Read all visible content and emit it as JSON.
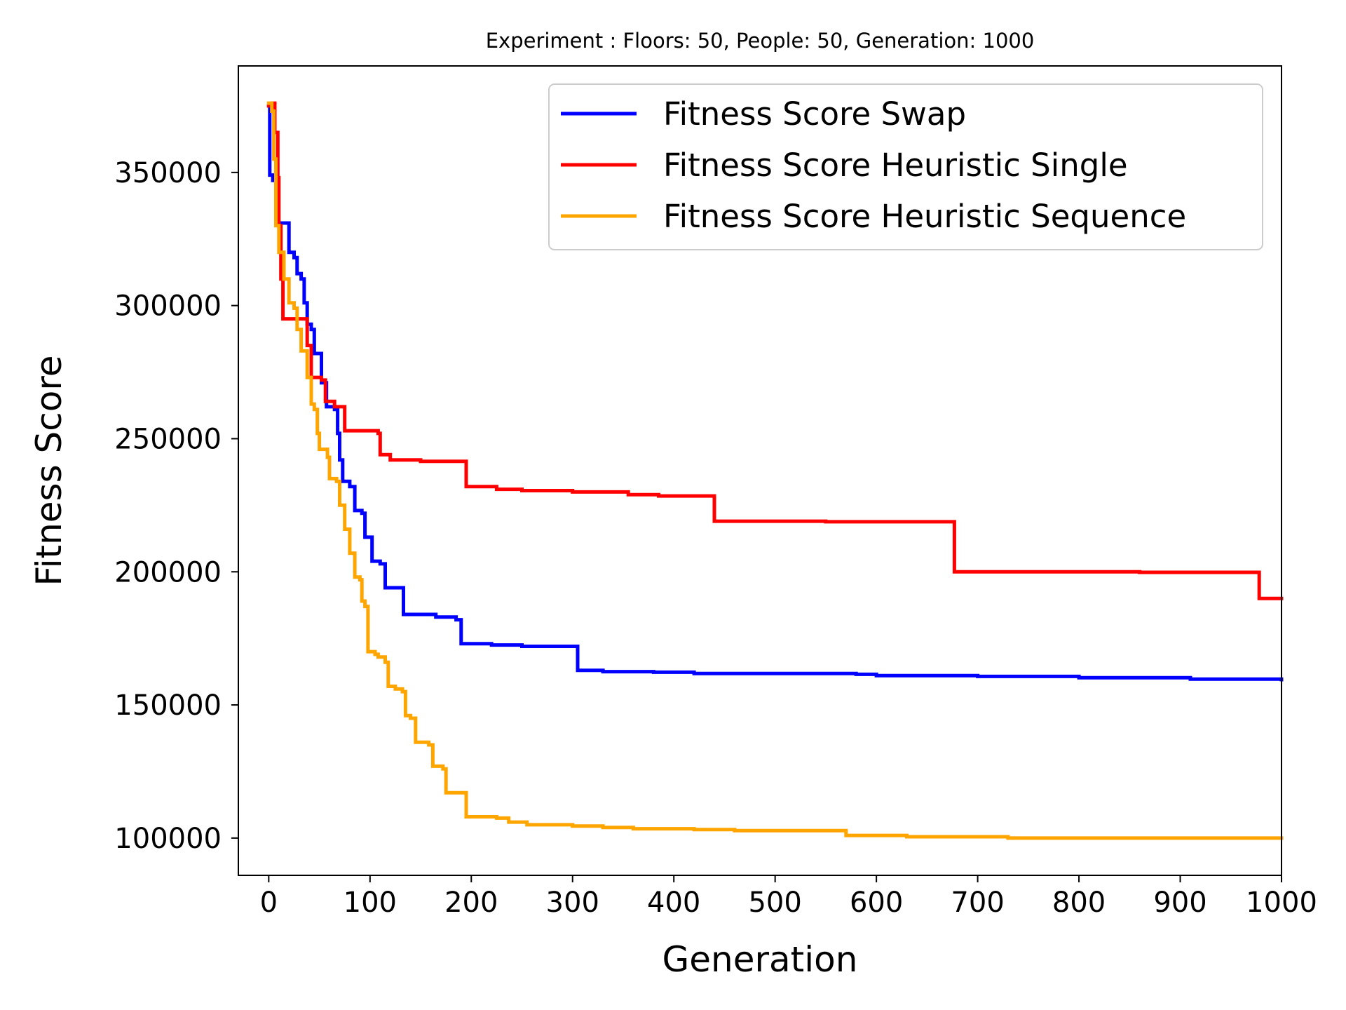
{
  "chart_data": {
    "type": "line",
    "title": "Experiment : Floors: 50, People: 50, Generation: 1000",
    "xlabel": "Generation",
    "ylabel": "Fitness Score",
    "xlim": [
      -30,
      1000
    ],
    "ylim": [
      86000,
      390000
    ],
    "xticks": [
      0,
      100,
      200,
      300,
      400,
      500,
      600,
      700,
      800,
      900,
      1000
    ],
    "yticks": [
      100000,
      150000,
      200000,
      250000,
      300000,
      350000
    ],
    "grid": false,
    "legend_position": "top-right",
    "series": [
      {
        "name": "Fitness Score Swap",
        "color": "#0000ff",
        "step": true,
        "points": [
          [
            0,
            375000
          ],
          [
            1,
            349000
          ],
          [
            4,
            347000
          ],
          [
            8,
            331000
          ],
          [
            20,
            320000
          ],
          [
            25,
            318000
          ],
          [
            28,
            312000
          ],
          [
            32,
            310000
          ],
          [
            35,
            301000
          ],
          [
            38,
            293000
          ],
          [
            42,
            291000
          ],
          [
            45,
            282000
          ],
          [
            52,
            271000
          ],
          [
            57,
            262000
          ],
          [
            65,
            261000
          ],
          [
            68,
            252000
          ],
          [
            70,
            242000
          ],
          [
            73,
            234000
          ],
          [
            80,
            232000
          ],
          [
            85,
            223000
          ],
          [
            92,
            222000
          ],
          [
            95,
            213000
          ],
          [
            100,
            213000
          ],
          [
            102,
            204000
          ],
          [
            110,
            203000
          ],
          [
            115,
            194000
          ],
          [
            125,
            194000
          ],
          [
            133,
            184000
          ],
          [
            165,
            183000
          ],
          [
            185,
            182000
          ],
          [
            190,
            173000
          ],
          [
            220,
            172500
          ],
          [
            250,
            172000
          ],
          [
            300,
            172000
          ],
          [
            305,
            163000
          ],
          [
            330,
            162500
          ],
          [
            380,
            162300
          ],
          [
            420,
            161800
          ],
          [
            580,
            161500
          ],
          [
            600,
            161000
          ],
          [
            700,
            160700
          ],
          [
            800,
            160200
          ],
          [
            910,
            159700
          ],
          [
            1000,
            159500
          ]
        ]
      },
      {
        "name": "Fitness Score Heuristic Single",
        "color": "#ff0000",
        "step": true,
        "points": [
          [
            0,
            375000
          ],
          [
            3,
            376000
          ],
          [
            6,
            365000
          ],
          [
            9,
            348000
          ],
          [
            10,
            330000
          ],
          [
            12,
            310000
          ],
          [
            14,
            295000
          ],
          [
            35,
            295000
          ],
          [
            38,
            285000
          ],
          [
            42,
            273000
          ],
          [
            52,
            272000
          ],
          [
            56,
            264000
          ],
          [
            65,
            262000
          ],
          [
            75,
            253000
          ],
          [
            95,
            253000
          ],
          [
            108,
            252000
          ],
          [
            110,
            244000
          ],
          [
            120,
            242000
          ],
          [
            150,
            241500
          ],
          [
            195,
            232000
          ],
          [
            225,
            231000
          ],
          [
            250,
            230500
          ],
          [
            300,
            230000
          ],
          [
            355,
            229000
          ],
          [
            385,
            228500
          ],
          [
            440,
            219000
          ],
          [
            550,
            218800
          ],
          [
            677,
            200000
          ],
          [
            860,
            199800
          ],
          [
            978,
            190000
          ],
          [
            1000,
            190000
          ]
        ]
      },
      {
        "name": "Fitness Score Heuristic Sequence",
        "color": "#ffa500",
        "step": true,
        "points": [
          [
            0,
            376000
          ],
          [
            3,
            373000
          ],
          [
            5,
            355000
          ],
          [
            7,
            330000
          ],
          [
            10,
            320000
          ],
          [
            15,
            310000
          ],
          [
            20,
            301000
          ],
          [
            25,
            299000
          ],
          [
            28,
            291000
          ],
          [
            32,
            283000
          ],
          [
            36,
            283000
          ],
          [
            38,
            273000
          ],
          [
            42,
            263000
          ],
          [
            45,
            261000
          ],
          [
            48,
            252000
          ],
          [
            50,
            246000
          ],
          [
            58,
            243000
          ],
          [
            60,
            235000
          ],
          [
            67,
            234000
          ],
          [
            70,
            225000
          ],
          [
            75,
            216000
          ],
          [
            80,
            207000
          ],
          [
            85,
            198000
          ],
          [
            90,
            197000
          ],
          [
            92,
            189000
          ],
          [
            95,
            187000
          ],
          [
            98,
            170000
          ],
          [
            105,
            169000
          ],
          [
            108,
            168000
          ],
          [
            115,
            166000
          ],
          [
            118,
            157000
          ],
          [
            125,
            156000
          ],
          [
            132,
            155000
          ],
          [
            135,
            146000
          ],
          [
            140,
            145000
          ],
          [
            145,
            136000
          ],
          [
            158,
            135000
          ],
          [
            162,
            127000
          ],
          [
            172,
            126000
          ],
          [
            175,
            117000
          ],
          [
            195,
            108000
          ],
          [
            225,
            107500
          ],
          [
            237,
            106000
          ],
          [
            255,
            105000
          ],
          [
            300,
            104500
          ],
          [
            330,
            104000
          ],
          [
            360,
            103500
          ],
          [
            420,
            103200
          ],
          [
            460,
            102800
          ],
          [
            570,
            101000
          ],
          [
            630,
            100500
          ],
          [
            730,
            100000
          ],
          [
            1000,
            100000
          ]
        ]
      }
    ]
  }
}
